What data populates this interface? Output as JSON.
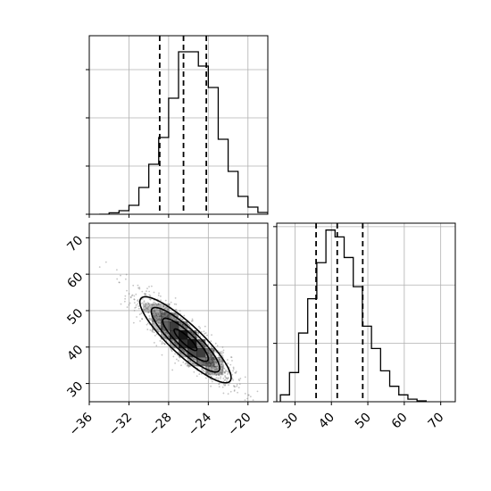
{
  "chart_data": {
    "type": "corner",
    "grid": true,
    "panels": [
      {
        "id": "hist-x",
        "type": "histogram",
        "variable": "x",
        "xlim": [
          -36,
          -18
        ],
        "bins": [
          {
            "x0": -35.0,
            "x1": -34.0,
            "count": 0.0
          },
          {
            "x0": -34.0,
            "x1": -33.0,
            "count": 0.8
          },
          {
            "x0": -33.0,
            "x1": -32.0,
            "count": 2.0
          },
          {
            "x0": -32.0,
            "x1": -31.0,
            "count": 5.0
          },
          {
            "x0": -31.0,
            "x1": -30.0,
            "count": 15.0
          },
          {
            "x0": -30.0,
            "x1": -29.0,
            "count": 28.0
          },
          {
            "x0": -29.0,
            "x1": -28.0,
            "count": 43.0
          },
          {
            "x0": -28.0,
            "x1": -27.0,
            "count": 65.0
          },
          {
            "x0": -27.0,
            "x1": -26.0,
            "count": 91.0
          },
          {
            "x0": -26.0,
            "x1": -25.0,
            "count": 91.0
          },
          {
            "x0": -25.0,
            "x1": -24.0,
            "count": 83.0
          },
          {
            "x0": -24.0,
            "x1": -23.0,
            "count": 71.0
          },
          {
            "x0": -23.0,
            "x1": -22.0,
            "count": 42.0
          },
          {
            "x0": -22.0,
            "x1": -21.0,
            "count": 24.0
          },
          {
            "x0": -21.0,
            "x1": -20.0,
            "count": 10.0
          },
          {
            "x0": -20.0,
            "x1": -19.0,
            "count": 4.0
          },
          {
            "x0": -19.0,
            "x1": -18.0,
            "count": 1.0
          }
        ],
        "ylim": [
          0,
          100
        ],
        "ytick_values": [
          0,
          27,
          54,
          81
        ],
        "quantile_lines": [
          -28.9,
          -26.5,
          -24.2
        ]
      },
      {
        "id": "hist-y",
        "type": "histogram",
        "variable": "y",
        "xlim": [
          25,
          74
        ],
        "xticks": [
          30,
          40,
          50,
          60,
          70
        ],
        "xtick_labels": [
          "30",
          "40",
          "50",
          "60",
          "70"
        ],
        "bins": [
          {
            "x0": 26.0,
            "x1": 28.5,
            "count": 4.0
          },
          {
            "x0": 28.5,
            "x1": 31.0,
            "count": 17.0
          },
          {
            "x0": 31.0,
            "x1": 33.5,
            "count": 40.0
          },
          {
            "x0": 33.5,
            "x1": 36.0,
            "count": 60.0
          },
          {
            "x0": 36.0,
            "x1": 38.5,
            "count": 81.0
          },
          {
            "x0": 38.5,
            "x1": 41.0,
            "count": 100.0
          },
          {
            "x0": 41.0,
            "x1": 43.5,
            "count": 96.0
          },
          {
            "x0": 43.5,
            "x1": 46.0,
            "count": 84.0
          },
          {
            "x0": 46.0,
            "x1": 48.5,
            "count": 67.0
          },
          {
            "x0": 48.5,
            "x1": 51.0,
            "count": 44.0
          },
          {
            "x0": 51.0,
            "x1": 53.5,
            "count": 31.0
          },
          {
            "x0": 53.5,
            "x1": 56.0,
            "count": 18.0
          },
          {
            "x0": 56.0,
            "x1": 58.5,
            "count": 9.0
          },
          {
            "x0": 58.5,
            "x1": 61.0,
            "count": 4.0
          },
          {
            "x0": 61.0,
            "x1": 63.5,
            "count": 1.5
          },
          {
            "x0": 63.5,
            "x1": 66.0,
            "count": 0.5
          }
        ],
        "ylim": [
          0,
          104
        ],
        "ytick_values": [
          0,
          34,
          68,
          102
        ],
        "quantile_lines": [
          35.8,
          41.6,
          48.6
        ]
      },
      {
        "id": "joint-xy",
        "type": "density",
        "x_variable": "x",
        "y_variable": "y",
        "xlim": [
          -36,
          -18
        ],
        "ylim": [
          25,
          74
        ],
        "xticks": [
          -36,
          -32,
          -28,
          -24,
          -20
        ],
        "xtick_labels": [
          "−36",
          "−32",
          "−28",
          "−24",
          "−20"
        ],
        "yticks": [
          30,
          40,
          50,
          60,
          70
        ],
        "ytick_labels": [
          "30",
          "40",
          "50",
          "60",
          "70"
        ],
        "center": [
          -26.3,
          42.0
        ],
        "sigma": [
          2.3,
          5.9
        ],
        "correlation": -0.88,
        "contour_levels_sigma": [
          0.5,
          1.0,
          1.5,
          2.0
        ],
        "scatter_color": "#7f7f7f",
        "density_color": "#000000"
      }
    ]
  }
}
